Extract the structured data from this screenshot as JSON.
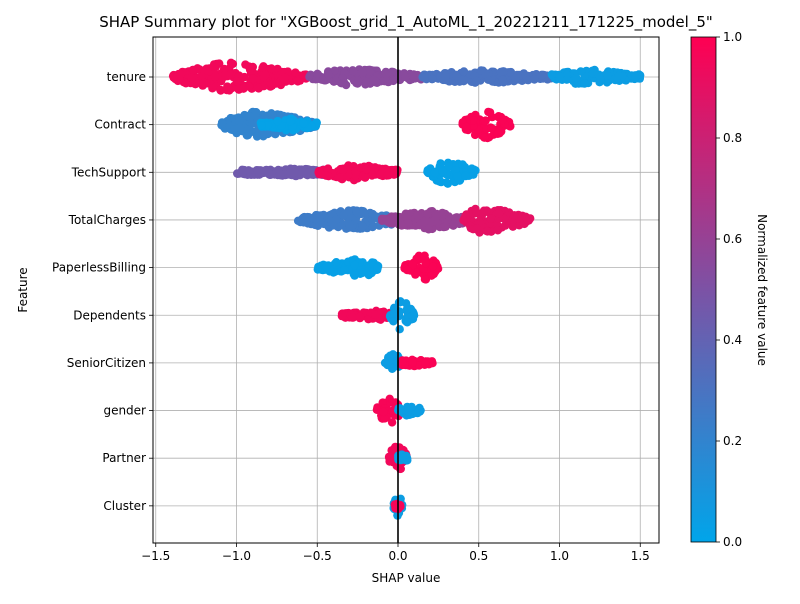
{
  "chart_data": {
    "type": "scatter",
    "subtype": "shap-beeswarm",
    "title": "SHAP Summary plot for \"XGBoost_grid_1_AutoML_1_20221211_171225_model_5\"",
    "xlabel": "SHAP value",
    "ylabel": "Feature",
    "xlim": [
      -1.55,
      1.65
    ],
    "xticks": [
      -1.5,
      -1.0,
      -0.5,
      0.0,
      0.5,
      1.0,
      1.5
    ],
    "xtick_labels": [
      "−1.5",
      "−1.0",
      "−0.5",
      "0.0",
      "0.5",
      "1.0",
      "1.5"
    ],
    "grid": true,
    "zero_line": 0.0,
    "colorbar": {
      "label": "Normalized feature value",
      "range": [
        0.0,
        1.0
      ],
      "ticks": [
        0.0,
        0.2,
        0.4,
        0.6,
        0.8,
        1.0
      ],
      "tick_labels": [
        "0.0",
        "0.2",
        "0.4",
        "0.6",
        "0.8",
        "1.0"
      ],
      "low_color": "#00a5ea",
      "mid_color": "#7c52a5",
      "high_color": "#ff0052"
    },
    "features": [
      {
        "name": "tenure",
        "clusters": [
          {
            "x0": -1.4,
            "x1": -0.55,
            "center": -1.05,
            "halfwidth": 0.95,
            "value": 0.95
          },
          {
            "x0": -0.55,
            "x1": 0.15,
            "center": -0.3,
            "halfwidth": 0.55,
            "value": 0.55
          },
          {
            "x0": 0.15,
            "x1": 0.95,
            "center": 0.5,
            "halfwidth": 0.45,
            "value": 0.3
          },
          {
            "x0": 0.95,
            "x1": 1.5,
            "center": 1.15,
            "halfwidth": 0.5,
            "value": 0.05
          }
        ]
      },
      {
        "name": "Contract",
        "clusters": [
          {
            "x0": -1.1,
            "x1": -0.5,
            "center": -0.88,
            "halfwidth": 0.85,
            "value": 0.2
          },
          {
            "x0": -0.85,
            "x1": -0.5,
            "center": -0.65,
            "halfwidth": 0.4,
            "value": 0.02
          },
          {
            "x0": 0.4,
            "x1": 0.7,
            "center": 0.52,
            "halfwidth": 0.95,
            "value": 0.98
          }
        ]
      },
      {
        "name": "TechSupport",
        "clusters": [
          {
            "x0": -1.0,
            "x1": -0.45,
            "center": -0.6,
            "halfwidth": 0.25,
            "value": 0.45
          },
          {
            "x0": -0.5,
            "x1": 0.0,
            "center": -0.3,
            "halfwidth": 0.55,
            "value": 0.95
          },
          {
            "x0": 0.18,
            "x1": 0.48,
            "center": 0.3,
            "halfwidth": 0.8,
            "value": 0.03
          }
        ]
      },
      {
        "name": "TotalCharges",
        "clusters": [
          {
            "x0": -0.62,
            "x1": 0.05,
            "center": -0.3,
            "halfwidth": 0.65,
            "value": 0.25
          },
          {
            "x0": -0.1,
            "x1": 0.45,
            "center": 0.2,
            "halfwidth": 0.6,
            "value": 0.6
          },
          {
            "x0": 0.4,
            "x1": 0.82,
            "center": 0.5,
            "halfwidth": 0.9,
            "value": 0.9
          }
        ]
      },
      {
        "name": "PaperlessBilling",
        "clusters": [
          {
            "x0": -0.5,
            "x1": -0.12,
            "center": -0.2,
            "halfwidth": 0.6,
            "value": 0.03
          },
          {
            "x0": 0.04,
            "x1": 0.25,
            "center": 0.15,
            "halfwidth": 0.95,
            "value": 0.98
          }
        ]
      },
      {
        "name": "Dependents",
        "clusters": [
          {
            "x0": -0.35,
            "x1": -0.02,
            "center": -0.12,
            "halfwidth": 0.3,
            "value": 0.95
          },
          {
            "x0": -0.05,
            "x1": 0.1,
            "center": 0.02,
            "halfwidth": 1.0,
            "value": 0.05
          }
        ]
      },
      {
        "name": "SeniorCitizen",
        "clusters": [
          {
            "x0": -0.08,
            "x1": 0.02,
            "center": -0.02,
            "halfwidth": 0.7,
            "value": 0.05
          },
          {
            "x0": 0.02,
            "x1": 0.22,
            "center": 0.08,
            "halfwidth": 0.25,
            "value": 0.98
          }
        ]
      },
      {
        "name": "gender",
        "clusters": [
          {
            "x0": -0.14,
            "x1": 0.02,
            "center": -0.04,
            "halfwidth": 0.85,
            "value": 0.97
          },
          {
            "x0": 0.0,
            "x1": 0.14,
            "center": 0.05,
            "halfwidth": 0.35,
            "value": 0.05
          }
        ]
      },
      {
        "name": "Partner",
        "clusters": [
          {
            "x0": -0.06,
            "x1": 0.06,
            "center": 0.0,
            "halfwidth": 0.95,
            "value": 0.95
          },
          {
            "x0": 0.0,
            "x1": 0.06,
            "center": 0.03,
            "halfwidth": 0.3,
            "value": 0.05
          }
        ]
      },
      {
        "name": "Cluster",
        "clusters": [
          {
            "x0": -0.03,
            "x1": 0.03,
            "center": 0.0,
            "halfwidth": 0.75,
            "value": 0.05
          },
          {
            "x0": -0.02,
            "x1": 0.02,
            "center": 0.0,
            "halfwidth": 0.2,
            "value": 0.97
          }
        ]
      }
    ]
  }
}
